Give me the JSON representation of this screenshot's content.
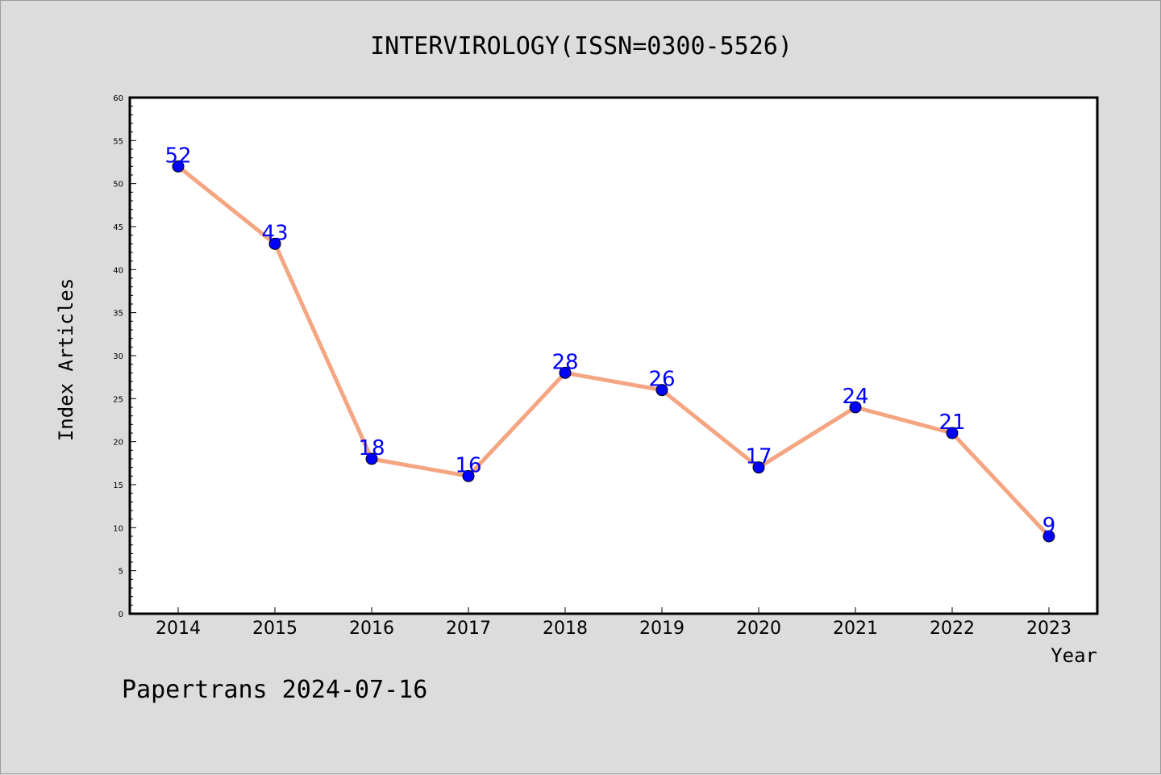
{
  "title": "INTERVIROLOGY(ISSN=0300-5526)",
  "footer": "Papertrans 2024-07-16",
  "colors": {
    "background": "#dcdcdc",
    "plot_background": "#ffffff",
    "line": "#f4a582",
    "marker": "#0000ff",
    "data_label": "#0000ff"
  },
  "chart_data": {
    "type": "line",
    "title": "INTERVIROLOGY(ISSN=0300-5526)",
    "xlabel": "Year",
    "ylabel": "Index Articles",
    "categories": [
      "2014",
      "2015",
      "2016",
      "2017",
      "2018",
      "2019",
      "2020",
      "2021",
      "2022",
      "2023"
    ],
    "series": [
      {
        "values": [
          52,
          43,
          18,
          16,
          28,
          26,
          17,
          24,
          21,
          9
        ]
      }
    ],
    "ylim": [
      0,
      60
    ],
    "yticks": [
      0,
      5,
      10,
      15,
      20,
      25,
      30,
      35,
      40,
      45,
      50,
      55,
      60
    ],
    "grid": false,
    "data_labels": true
  }
}
